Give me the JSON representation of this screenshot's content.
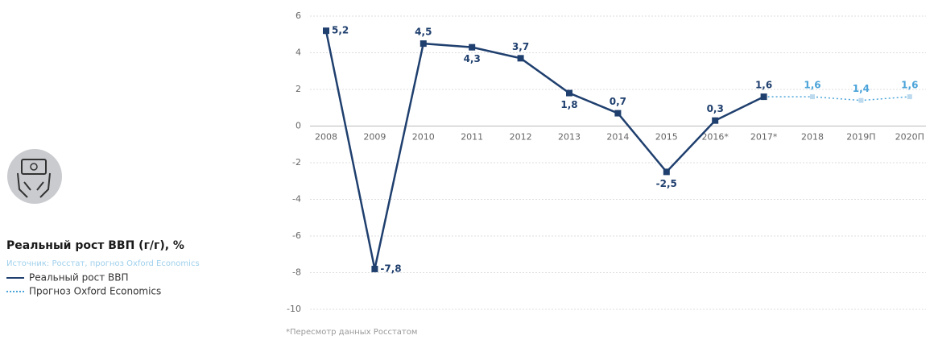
{
  "chart_data": {
    "type": "line",
    "title": "Реальный рост ВВП (г/г), %",
    "subtitle": "Источник: Росстат, прогноз Oxford Economics",
    "footnote": "*Пересмотр данных Росстатом",
    "categories": [
      "2008",
      "2009",
      "2010",
      "2011",
      "2012",
      "2013",
      "2014",
      "2015",
      "2016*",
      "2017*",
      "2018",
      "2019П",
      "2020П"
    ],
    "series": [
      {
        "name": "Реальный рост ВВП",
        "color": "#1f3f6e",
        "style": "solid",
        "values": [
          5.2,
          -7.8,
          4.5,
          4.3,
          3.7,
          1.8,
          0.7,
          -2.5,
          0.3,
          1.6,
          null,
          null,
          null
        ],
        "value_labels": [
          "5,2",
          "-7,8",
          "4,5",
          "4,3",
          "3,7",
          "1,8",
          "0,7",
          "-2,5",
          "0,3",
          "1,6",
          null,
          null,
          null
        ]
      },
      {
        "name": "Прогноз Oxford Economics",
        "color": "#4aa3d9",
        "style": "dotted",
        "values": [
          null,
          null,
          null,
          null,
          null,
          null,
          null,
          null,
          null,
          null,
          1.6,
          1.4,
          1.6
        ],
        "value_labels": [
          null,
          null,
          null,
          null,
          null,
          null,
          null,
          null,
          null,
          null,
          "1,6",
          "1,4",
          "1,6"
        ]
      }
    ],
    "ylim": [
      -10,
      6
    ],
    "yticks": [
      -10,
      -8,
      -6,
      -4,
      -2,
      0,
      2,
      4,
      6
    ],
    "grid": true
  }
}
